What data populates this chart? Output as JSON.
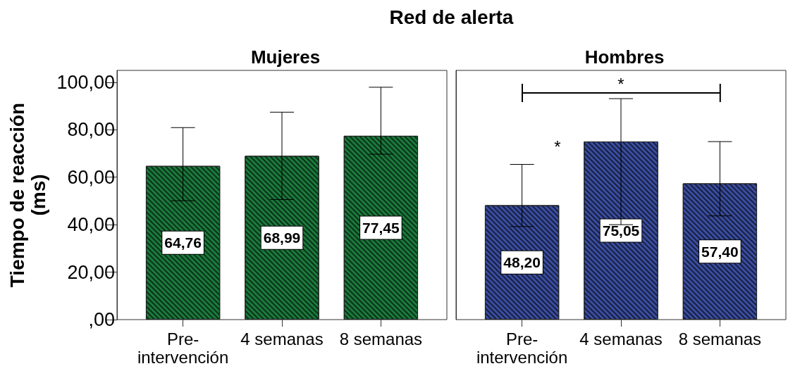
{
  "chart_data": [
    {
      "type": "bar",
      "title": "Red de alerta",
      "subtitle": "Mujeres",
      "ylabel": "Tiempo de reacción (ms)",
      "categories": [
        "Pre-intervención",
        "4 semanas",
        "8 semanas"
      ],
      "values": [
        64.76,
        68.99,
        77.45
      ],
      "value_labels": [
        "64,76",
        "68,99",
        "77,45"
      ],
      "errors": [
        [
          50.1,
          80.9
        ],
        [
          50.6,
          87.4
        ],
        [
          69.7,
          97.9
        ]
      ],
      "color": "#1b7a3c",
      "ylim": [
        0,
        105
      ],
      "yticks": [
        {
          "value": 0,
          "label": ",00"
        },
        {
          "value": 20,
          "label": "20,00"
        },
        {
          "value": 40,
          "label": "40,00"
        },
        {
          "value": 60,
          "label": "60,00"
        },
        {
          "value": 80,
          "label": "80,00"
        },
        {
          "value": 100,
          "label": "100,00"
        }
      ]
    },
    {
      "type": "bar",
      "subtitle": "Hombres",
      "categories": [
        "Pre-intervención",
        "4 semanas",
        "8 semanas"
      ],
      "values": [
        48.2,
        75.05,
        57.4
      ],
      "value_labels": [
        "48,20",
        "75,05",
        "57,40"
      ],
      "errors": [
        [
          39.2,
          65.4
        ],
        [
          40,
          93.1
        ],
        [
          43.7,
          75
        ]
      ],
      "color": "#3a4da0",
      "ylim": [
        0,
        105
      ],
      "tick_labels": "x",
      "annotations": [
        "*",
        "*"
      ]
    }
  ]
}
